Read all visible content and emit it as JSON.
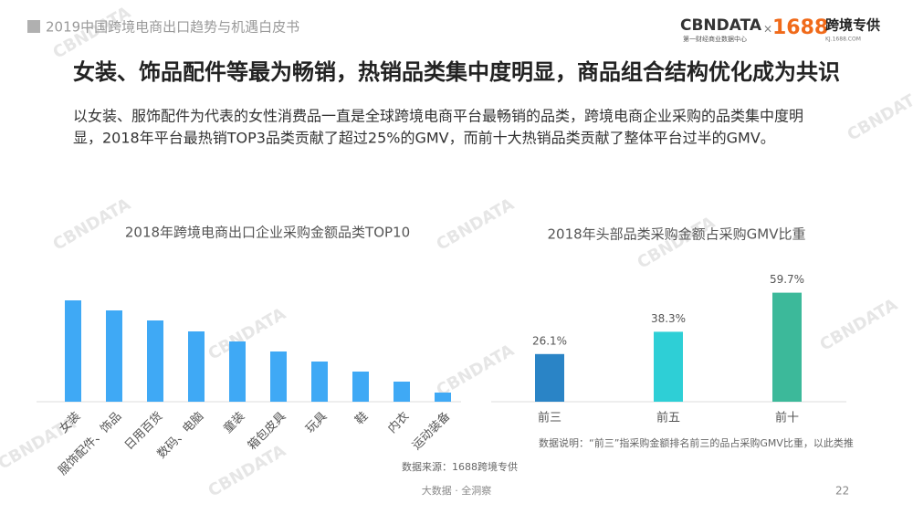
{
  "header": {
    "title": "2019中国跨境电商出口趋势与机遇白皮书"
  },
  "logo": {
    "brand": "CBNDATA",
    "brand_sub": "第一财经商业数据中心",
    "cross": "×",
    "partner": "1688",
    "partner_name": "跨境专供",
    "partner_url": "KJ.1688.COM"
  },
  "watermark": "CBNDATA",
  "title": "女装、饰品配件等最为畅销，热销品类集中度明显，商品组合结构优化成为共识",
  "body": [
    "以女装、服饰配件为代表的女性消费品一直是全球跨境电商平台最畅销的品类，跨境电商企业采购的品类集中度明",
    "显，2018年平台最热销TOP3品类贡献了超过25%的GMV，而前十大热销品类贡献了整体平台过半的GMV。"
  ],
  "chart_data": [
    {
      "type": "bar",
      "title": "2018年跨境电商出口企业采购金额品类TOP10",
      "categories": [
        "女装",
        "服饰配件、饰品",
        "日用百货",
        "数码、电脑",
        "童装",
        "箱包皮具",
        "玩具",
        "鞋",
        "内衣",
        "运动装备"
      ],
      "values": [
        111,
        100,
        89,
        77,
        66,
        55,
        44,
        33,
        22,
        10
      ],
      "color": "#3fa9f5",
      "ylim": [
        0,
        120
      ],
      "source": "数据来源：1688跨境专供"
    },
    {
      "type": "bar",
      "title": "2018年头部品类采购金额占采购GMV比重",
      "categories": [
        "前三",
        "前五",
        "前十"
      ],
      "values": [
        26.1,
        38.3,
        59.7
      ],
      "value_labels": [
        "26.1%",
        "38.3%",
        "59.7%"
      ],
      "colors": [
        "#2a84c6",
        "#2ecfd6",
        "#3cb99a"
      ],
      "ylim": [
        0,
        60
      ],
      "note": "数据说明：“前三”指采购金额排名前三的品占采购GMV比重，以此类推"
    }
  ],
  "footer": {
    "slogan": "大数据 · 全洞察",
    "page": "22"
  }
}
